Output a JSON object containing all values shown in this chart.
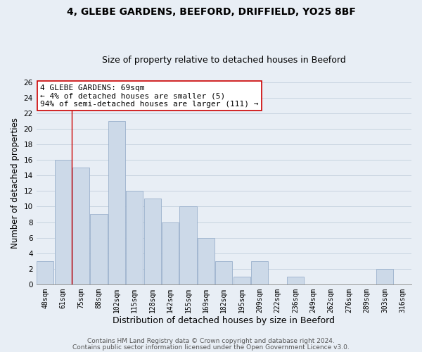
{
  "title": "4, GLEBE GARDENS, BEEFORD, DRIFFIELD, YO25 8BF",
  "subtitle": "Size of property relative to detached houses in Beeford",
  "xlabel": "Distribution of detached houses by size in Beeford",
  "ylabel": "Number of detached properties",
  "bin_labels": [
    "48sqm",
    "61sqm",
    "75sqm",
    "88sqm",
    "102sqm",
    "115sqm",
    "128sqm",
    "142sqm",
    "155sqm",
    "169sqm",
    "182sqm",
    "195sqm",
    "209sqm",
    "222sqm",
    "236sqm",
    "249sqm",
    "262sqm",
    "276sqm",
    "289sqm",
    "303sqm",
    "316sqm"
  ],
  "bar_heights": [
    3,
    16,
    15,
    9,
    21,
    12,
    11,
    8,
    10,
    6,
    3,
    1,
    3,
    0,
    1,
    0,
    0,
    0,
    0,
    2,
    0
  ],
  "bar_color": "#ccd9e8",
  "bar_edge_color": "#9ab0cc",
  "vline_x_index": 1.5,
  "vline_color": "#cc0000",
  "annotation_box_text": "4 GLEBE GARDENS: 69sqm\n← 4% of detached houses are smaller (5)\n94% of semi-detached houses are larger (111) →",
  "annotation_box_edge_color": "#cc0000",
  "annotation_box_bg": "#ffffff",
  "ylim": [
    0,
    26
  ],
  "yticks": [
    0,
    2,
    4,
    6,
    8,
    10,
    12,
    14,
    16,
    18,
    20,
    22,
    24,
    26
  ],
  "grid_color": "#c8d4e0",
  "background_color": "#e8eef5",
  "footer_line1": "Contains HM Land Registry data © Crown copyright and database right 2024.",
  "footer_line2": "Contains public sector information licensed under the Open Government Licence v3.0.",
  "title_fontsize": 10,
  "subtitle_fontsize": 9,
  "xlabel_fontsize": 9,
  "ylabel_fontsize": 8.5,
  "annotation_fontsize": 8,
  "footer_fontsize": 6.5
}
